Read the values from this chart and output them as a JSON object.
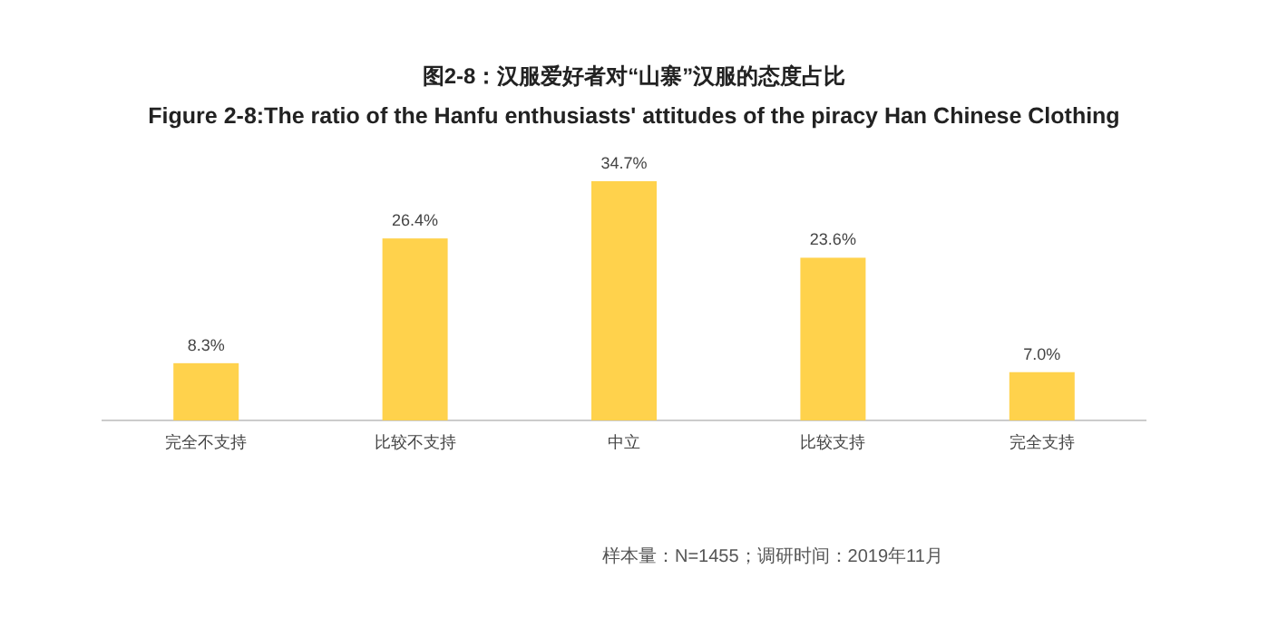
{
  "chart_data": {
    "type": "bar",
    "title": "图2-8：汉服爱好者对“山寨”汉服的态度占比",
    "subtitle": "Figure 2-8:The ratio of the Hanfu enthusiasts' attitudes of the piracy Han Chinese Clothing",
    "categories": [
      "完全不支持",
      "比较不支持",
      "中立",
      "比较支持",
      "完全支持"
    ],
    "values": [
      8.3,
      26.4,
      34.7,
      23.6,
      7.0
    ],
    "value_labels": [
      "8.3%",
      "26.4%",
      "34.7%",
      "23.6%",
      "7.0%"
    ],
    "color": "#ffd24c",
    "annotations": [
      "样本量：N=1455；调研时间：2019年11月"
    ]
  }
}
